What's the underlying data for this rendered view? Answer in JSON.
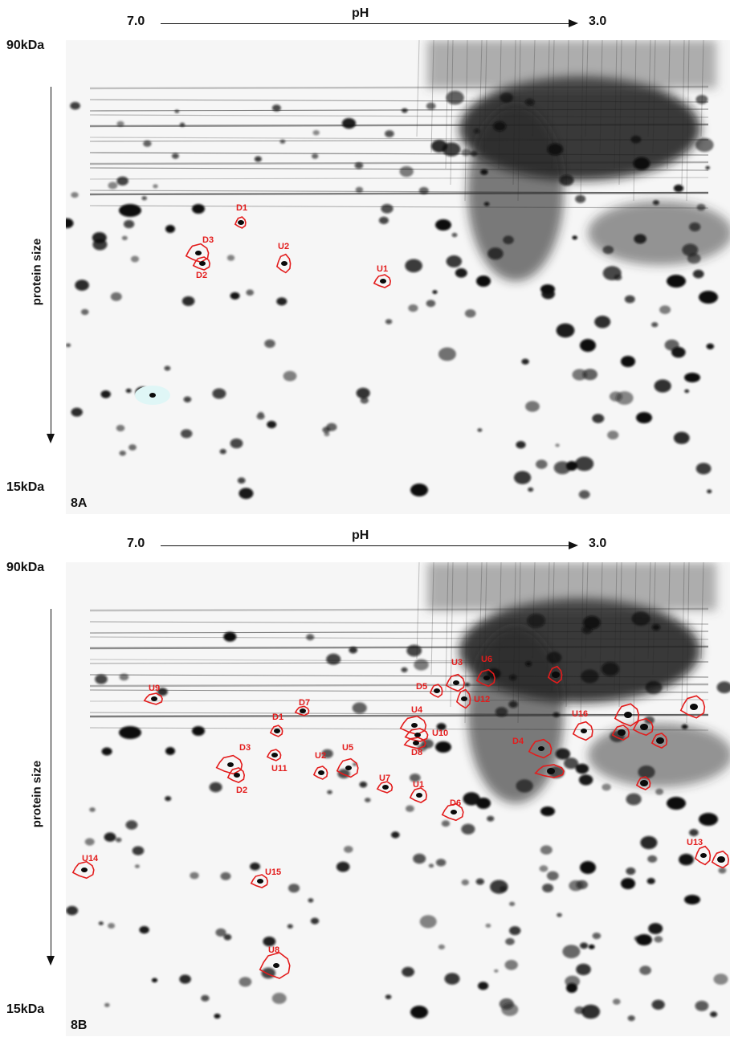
{
  "panels": [
    {
      "id": "8A",
      "tag": "8A",
      "ph_left": "7.0",
      "ph_title": "pH",
      "ph_right": "3.0",
      "mw_top": "90kDa",
      "mw_bottom": "15kDa",
      "y_axis_label": "protein size",
      "spots": [
        "D1",
        "D3",
        "U2",
        "D2",
        "U1"
      ]
    },
    {
      "id": "8B",
      "tag": "8B",
      "ph_left": "7.0",
      "ph_title": "pH",
      "ph_right": "3.0",
      "mw_top": "90kDa",
      "mw_bottom": "15kDa",
      "y_axis_label": "protein size",
      "spots": [
        "U3",
        "U6",
        "D5",
        "U12",
        "U9",
        "D7",
        "U4",
        "D1",
        "U10",
        "U16",
        "D8",
        "D4",
        "D3",
        "U11",
        "U5",
        "U2",
        "D2",
        "U7",
        "U1",
        "D6",
        "U13",
        "U14",
        "U15",
        "U8"
      ]
    }
  ],
  "colors": {
    "outline": "#e31c1c",
    "gel_bg": "#f6f6f6",
    "spot": "#0a0a0a"
  }
}
